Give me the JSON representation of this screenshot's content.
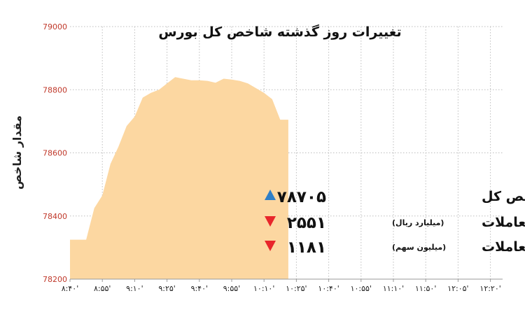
{
  "chart_data": {
    "type": "area",
    "title": "تغییرات روز گذشته شاخص کل بورس",
    "ylabel": "مقدار شاخص",
    "xlabel": "",
    "ylim": [
      78200,
      79000
    ],
    "y_ticks": [
      "79000",
      "78800",
      "78600",
      "78400",
      "78200"
    ],
    "x_ticks": [
      "۸:۴۰'",
      "۸:۵۵'",
      "۹:۱۰'",
      "۹:۲۵'",
      "۹:۴۰'",
      "۹:۵۵'",
      "۱۰:۱۰'",
      "۱۰:۲۵'",
      "۱۰:۴۰'",
      "۱۰:۵۵'",
      "۱۱:۱۰'",
      "۱۱:۵۰'",
      "۱۲:۰۵'",
      "۱۲:۲۰'"
    ],
    "grid": true,
    "fill_color": "#fcd7a1",
    "series": [
      {
        "points": [
          [
            0,
            78325
          ],
          [
            0.5,
            78325
          ],
          [
            0.75,
            78425
          ],
          [
            1,
            78465
          ],
          [
            1.25,
            78565
          ],
          [
            1.5,
            78620
          ],
          [
            1.75,
            78685
          ],
          [
            2,
            78715
          ],
          [
            2.25,
            78775
          ],
          [
            2.5,
            78790
          ],
          [
            2.75,
            78800
          ],
          [
            3,
            78820
          ],
          [
            3.25,
            78840
          ],
          [
            3.5,
            78835
          ],
          [
            3.75,
            78830
          ],
          [
            4,
            78830
          ],
          [
            4.25,
            78828
          ],
          [
            4.5,
            78822
          ],
          [
            4.75,
            78835
          ],
          [
            5,
            78832
          ],
          [
            5.25,
            78828
          ],
          [
            5.5,
            78820
          ],
          [
            5.75,
            78805
          ],
          [
            6,
            78790
          ],
          [
            6.25,
            78770
          ],
          [
            6.5,
            78705
          ],
          [
            6.75,
            78705
          ]
        ]
      }
    ]
  },
  "summary": [
    {
      "label": "شاخص کل",
      "unit": "",
      "value": "۷۸۷۰۵",
      "direction": "up",
      "color": "#2f7fc7"
    },
    {
      "label": "ارزش معاملات",
      "unit": "(میلیارد ریال)",
      "value": "۲۵۵۱",
      "direction": "down",
      "color": "#e8262b"
    },
    {
      "label": "حجم معاملات",
      "unit": "(میلیون سهم)",
      "value": "۱۱۸۱",
      "direction": "down",
      "color": "#e8262b"
    }
  ]
}
